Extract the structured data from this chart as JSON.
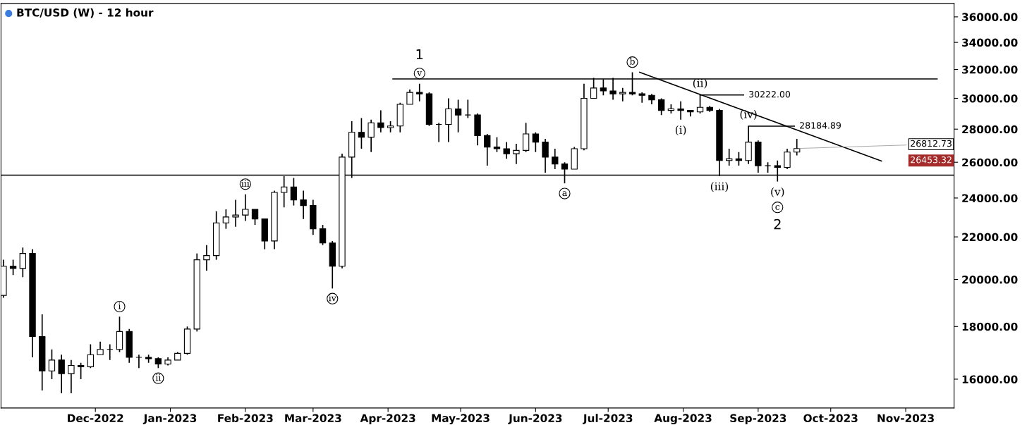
{
  "chart_data": {
    "type": "candlestick",
    "title": "BTC/USD (W) - 12 hour",
    "log": true,
    "x": [
      "2022-10-24",
      "2022-10-28",
      "2022-11-01",
      "2022-11-05",
      "2022-11-09",
      "2022-11-13",
      "2022-11-17",
      "2022-11-21",
      "2022-11-25",
      "2022-11-29",
      "2022-12-03",
      "2022-12-07",
      "2022-12-11",
      "2022-12-15",
      "2022-12-19",
      "2022-12-23",
      "2022-12-27",
      "2022-12-31",
      "2023-01-04",
      "2023-01-08",
      "2023-01-12",
      "2023-01-16",
      "2023-01-20",
      "2023-01-24",
      "2023-01-28",
      "2023-02-01",
      "2023-02-05",
      "2023-02-09",
      "2023-02-13",
      "2023-02-17",
      "2023-02-21",
      "2023-02-25",
      "2023-03-01",
      "2023-03-05",
      "2023-03-09",
      "2023-03-13",
      "2023-03-17",
      "2023-03-21",
      "2023-03-25",
      "2023-03-29",
      "2023-04-02",
      "2023-04-06",
      "2023-04-10",
      "2023-04-14",
      "2023-04-18",
      "2023-04-22",
      "2023-04-26",
      "2023-04-30",
      "2023-05-04",
      "2023-05-08",
      "2023-05-12",
      "2023-05-16",
      "2023-05-20",
      "2023-05-24",
      "2023-05-28",
      "2023-06-01",
      "2023-06-05",
      "2023-06-09",
      "2023-06-13",
      "2023-06-17",
      "2023-06-21",
      "2023-06-25",
      "2023-06-29",
      "2023-07-03",
      "2023-07-07",
      "2023-07-11",
      "2023-07-15",
      "2023-07-19",
      "2023-07-23",
      "2023-07-27",
      "2023-07-31",
      "2023-08-04",
      "2023-08-08",
      "2023-08-12",
      "2023-08-16",
      "2023-08-20",
      "2023-08-24",
      "2023-08-28",
      "2023-09-01",
      "2023-09-05",
      "2023-09-09",
      "2023-09-13",
      "2023-09-17"
    ],
    "ohlc": [
      [
        19300,
        20900,
        19200,
        20600
      ],
      [
        20600,
        20900,
        20200,
        20500
      ],
      [
        20500,
        21480,
        20100,
        21200
      ],
      [
        21200,
        21400,
        16800,
        17600
      ],
      [
        17600,
        18500,
        15600,
        16300
      ],
      [
        16300,
        17100,
        16000,
        16700
      ],
      [
        16700,
        16900,
        15500,
        16200
      ],
      [
        16200,
        16700,
        15500,
        16500
      ],
      [
        16500,
        16600,
        16000,
        16450
      ],
      [
        16450,
        17300,
        16400,
        16900
      ],
      [
        16900,
        17400,
        16900,
        17100
      ],
      [
        17100,
        17300,
        16700,
        17100
      ],
      [
        17100,
        18400,
        17000,
        17800
      ],
      [
        17800,
        17900,
        16600,
        16800
      ],
      [
        16800,
        16900,
        16400,
        16800
      ],
      [
        16800,
        16900,
        16600,
        16750
      ],
      [
        16750,
        16800,
        16400,
        16550
      ],
      [
        16550,
        16800,
        16500,
        16700
      ],
      [
        16700,
        17000,
        16700,
        16950
      ],
      [
        16950,
        18000,
        16900,
        17900
      ],
      [
        17900,
        21200,
        17800,
        20900
      ],
      [
        20900,
        21600,
        20400,
        21100
      ],
      [
        21100,
        23300,
        20900,
        22700
      ],
      [
        22700,
        23400,
        22400,
        23000
      ],
      [
        23000,
        23900,
        22500,
        23100
      ],
      [
        23100,
        24200,
        22800,
        23400
      ],
      [
        23400,
        23400,
        22600,
        22900
      ],
      [
        22900,
        22900,
        21400,
        21800
      ],
      [
        21800,
        24400,
        21400,
        24300
      ],
      [
        24300,
        25200,
        23500,
        24600
      ],
      [
        24600,
        25100,
        23600,
        23900
      ],
      [
        23900,
        24400,
        22900,
        23600
      ],
      [
        23600,
        23900,
        22100,
        22400
      ],
      [
        22400,
        22600,
        21600,
        21700
      ],
      [
        21700,
        21800,
        19600,
        20600
      ],
      [
        20600,
        26500,
        20500,
        26300
      ],
      [
        26300,
        28500,
        25100,
        27800
      ],
      [
        27800,
        28700,
        26800,
        27500
      ],
      [
        27500,
        28600,
        26600,
        28400
      ],
      [
        28400,
        29200,
        27800,
        28100
      ],
      [
        28100,
        28500,
        27800,
        28200
      ],
      [
        28200,
        29700,
        27800,
        29600
      ],
      [
        29600,
        30600,
        29600,
        30400
      ],
      [
        30400,
        31000,
        29800,
        30300
      ],
      [
        30300,
        30400,
        28200,
        28300
      ],
      [
        28300,
        28400,
        27200,
        28300
      ],
      [
        28300,
        30000,
        27200,
        29300
      ],
      [
        29300,
        29900,
        27800,
        28900
      ],
      [
        28900,
        29900,
        28700,
        28900
      ],
      [
        28900,
        29000,
        27000,
        27600
      ],
      [
        27600,
        27700,
        25800,
        26900
      ],
      [
        26900,
        27500,
        26600,
        26800
      ],
      [
        26800,
        27200,
        26200,
        26500
      ],
      [
        26500,
        27100,
        25900,
        26700
      ],
      [
        26700,
        28400,
        26600,
        27700
      ],
      [
        27700,
        27800,
        26600,
        27200
      ],
      [
        27200,
        27400,
        25400,
        26300
      ],
      [
        26300,
        26800,
        25600,
        25900
      ],
      [
        25900,
        26000,
        24800,
        25600
      ],
      [
        25600,
        26900,
        25600,
        26800
      ],
      [
        26800,
        31000,
        26700,
        30000
      ],
      [
        30000,
        31400,
        30000,
        30700
      ],
      [
        30700,
        31300,
        30200,
        30500
      ],
      [
        30500,
        31400,
        29900,
        30300
      ],
      [
        30300,
        30700,
        29800,
        30400
      ],
      [
        30400,
        31800,
        30200,
        30300
      ],
      [
        30300,
        30400,
        29700,
        30200
      ],
      [
        30200,
        30300,
        29600,
        29900
      ],
      [
        29900,
        30000,
        28900,
        29200
      ],
      [
        29200,
        29600,
        29000,
        29300
      ],
      [
        29300,
        29800,
        28600,
        29200
      ],
      [
        29200,
        29200,
        28800,
        29100
      ],
      [
        29100,
        30222,
        29000,
        29400
      ],
      [
        29400,
        29500,
        29100,
        29200
      ],
      [
        29200,
        29300,
        25200,
        26100
      ],
      [
        26100,
        26800,
        25800,
        26200
      ],
      [
        26200,
        26600,
        25800,
        26100
      ],
      [
        26100,
        28184.89,
        25900,
        27200
      ],
      [
        27200,
        27300,
        25400,
        25800
      ],
      [
        25800,
        26000,
        25400,
        25800
      ],
      [
        25800,
        26100,
        24900,
        25700
      ],
      [
        25700,
        26800,
        25600,
        26600
      ],
      [
        26600,
        27400,
        26400,
        26812.73
      ]
    ],
    "series": [
      {
        "type": "line",
        "color": "#000000",
        "x": [
          "2023-07-14",
          "2023-10-22"
        ],
        "values": [
          31800,
          26070
        ]
      },
      {
        "type": "line",
        "color": "#000000",
        "x": [
          "2023-04-03",
          "2023-11-14"
        ],
        "values": [
          31330,
          31330
        ]
      },
      {
        "type": "line",
        "color": "#000000",
        "x": [
          "2023-08-08",
          "2023-08-26"
        ],
        "values": [
          30222,
          30222
        ]
      },
      {
        "type": "line",
        "color": "#000000",
        "x": [
          "2023-08-28",
          "2023-09-16"
        ],
        "values": [
          28184.89,
          28184.89
        ]
      }
    ],
    "ref_lines": [
      {
        "axis": "y",
        "value": 25260,
        "color": "#000000"
      }
    ],
    "annotations": [
      {
        "text": "v",
        "x": "2023-04-14",
        "y": 31000
      },
      {
        "text": "1",
        "x": "2023-04-14",
        "y": 31000
      },
      {
        "text": "i",
        "x": "2022-12-11",
        "y": 18400
      },
      {
        "text": "ii",
        "x": "2022-12-27",
        "y": 16400
      },
      {
        "text": "iii",
        "x": "2023-02-01",
        "y": 24200
      },
      {
        "text": "iv",
        "x": "2023-03-09",
        "y": 19600
      },
      {
        "text": "a",
        "x": "2023-06-13",
        "y": 24800
      },
      {
        "text": "b",
        "x": "2023-07-11",
        "y": 31800
      },
      {
        "text": "(i)",
        "x": "2023-07-31",
        "y": 28600
      },
      {
        "text": "(ii)",
        "x": "2023-08-08",
        "y": 30222
      },
      {
        "text": "(iii)",
        "x": "2023-08-16",
        "y": 25200
      },
      {
        "text": "(iv)",
        "x": "2023-08-28",
        "y": 28184.89
      },
      {
        "text": "(v)",
        "x": "2023-09-09",
        "y": 24900
      },
      {
        "text": "c",
        "x": "2023-09-09",
        "y": 24900
      },
      {
        "text": "2",
        "x": "2023-09-09",
        "y": 24900
      },
      {
        "text": "30222.00",
        "x": "2023-08-26",
        "y": 30222
      },
      {
        "text": "28184.89",
        "x": "2023-09-16",
        "y": 28184.89
      },
      {
        "text": "26812.73",
        "x": "2023-09-17",
        "y": 26812.73
      },
      "26453.32"
    ],
    "xlim": [
      "2022-10-23",
      "2023-11-21"
    ],
    "xticks": [
      {
        "value": "2022-12-01",
        "label": "Dec-2022"
      },
      {
        "value": "2023-01-01",
        "label": "Jan-2023"
      },
      {
        "value": "2023-02-01",
        "label": "Feb-2023"
      },
      {
        "value": "2023-03-01",
        "label": "Mar-2023"
      },
      {
        "value": "2023-04-01",
        "label": "Apr-2023"
      },
      {
        "value": "2023-05-01",
        "label": "May-2023"
      },
      {
        "value": "2023-06-01",
        "label": "Jun-2023"
      },
      {
        "value": "2023-07-01",
        "label": "Jul-2023"
      },
      {
        "value": "2023-08-01",
        "label": "Aug-2023"
      },
      {
        "value": "2023-09-01",
        "label": "Sep-2023"
      },
      {
        "value": "2023-10-01",
        "label": "Oct-2023"
      },
      {
        "value": "2023-11-01",
        "label": "Nov-2023"
      }
    ],
    "ylim": [
      15000,
      37100
    ],
    "yticks": [
      {
        "value": 16000,
        "label": "16000.00"
      },
      {
        "value": 18000,
        "label": "18000.00"
      },
      {
        "value": 20000,
        "label": "20000.00"
      },
      {
        "value": 22000,
        "label": "22000.00"
      },
      {
        "value": 24000,
        "label": "24000.00"
      },
      {
        "value": 26000,
        "label": "26000.00"
      },
      {
        "value": 28000,
        "label": "28000.00"
      },
      {
        "value": 30000,
        "label": "30000.00"
      },
      {
        "value": 32000,
        "label": "32000.00"
      },
      {
        "value": 34000,
        "label": "34000.00"
      },
      {
        "value": 36000,
        "label": "36000.00"
      }
    ]
  }
}
